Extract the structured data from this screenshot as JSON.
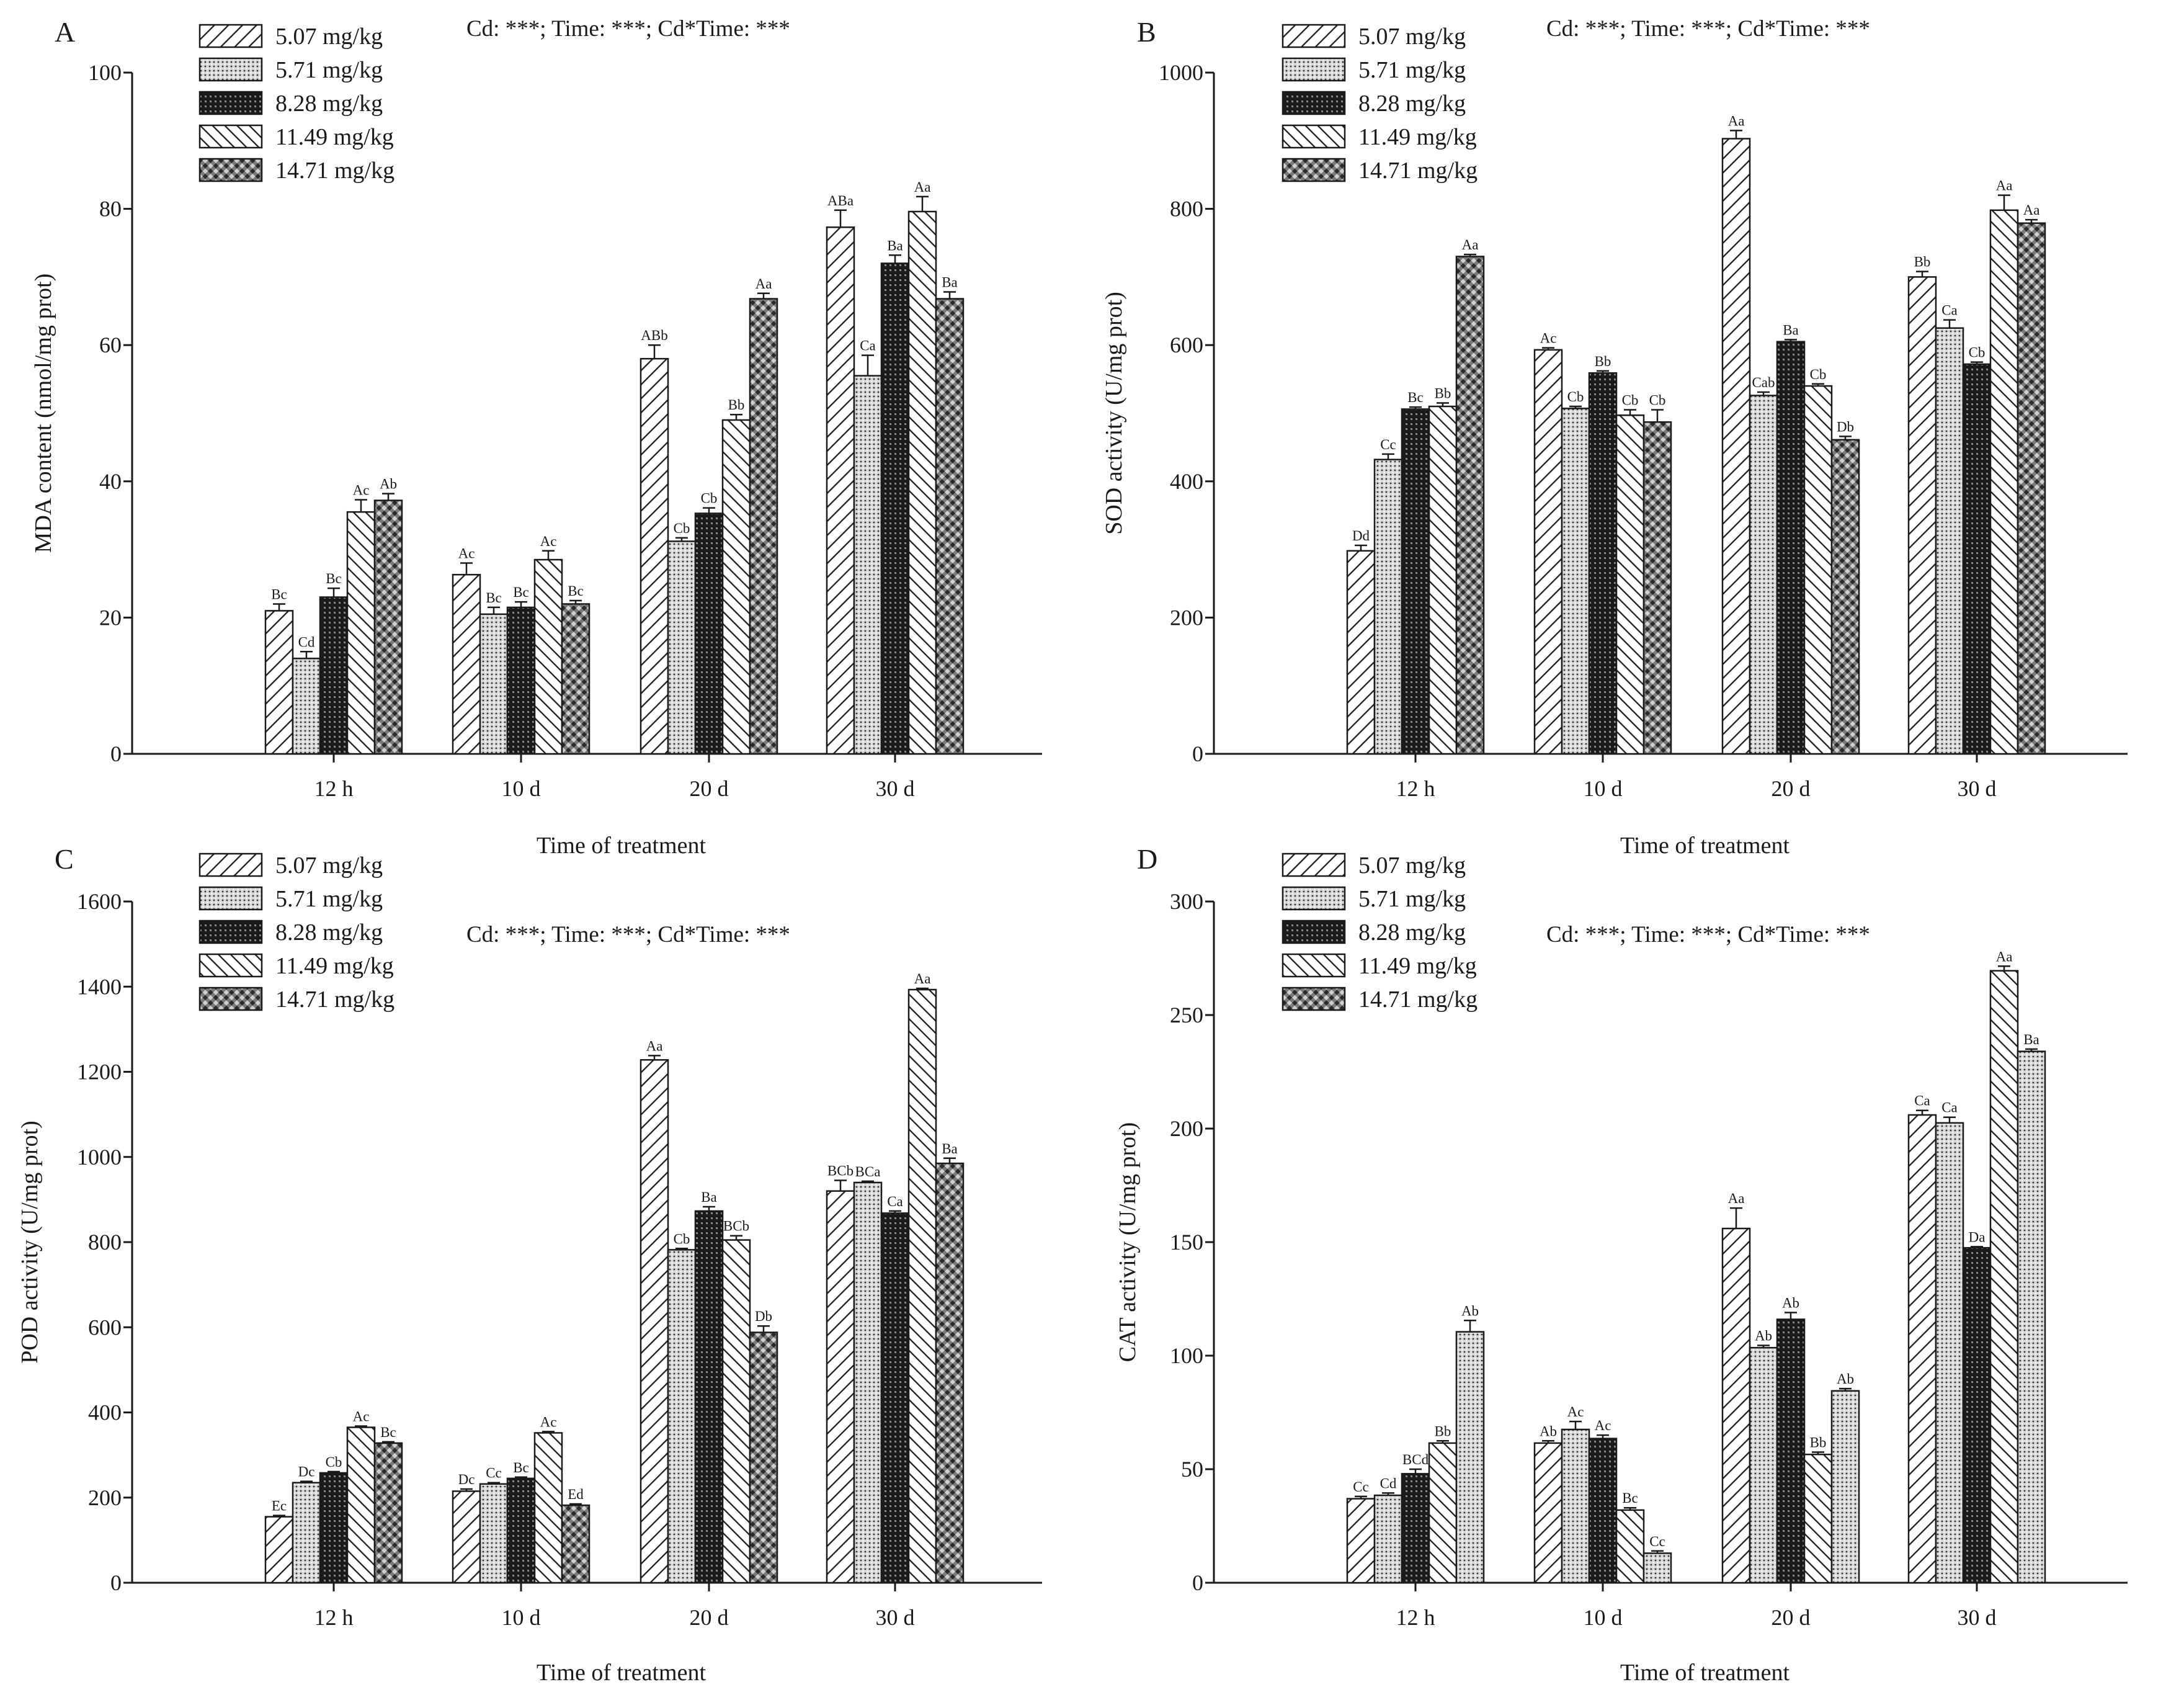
{
  "chart_data": [
    {
      "type": "bar",
      "panel": "A",
      "stat_text": "Cd: ***; Time: ***; Cd*Time: ***",
      "xlabel": "Time of treatment",
      "ylabel": "MDA content (nmol/mg prot)",
      "ylim": [
        0,
        100
      ],
      "yticks": [
        0,
        20,
        40,
        60,
        80,
        100
      ],
      "legend": "top-left",
      "categories": [
        "12 h",
        "10 d",
        "20 d",
        "30 d"
      ],
      "series": [
        {
          "name": "5.07 mg/kg",
          "pattern": "p0",
          "values": [
            21,
            26.3,
            58,
            77.3
          ],
          "errors": [
            1,
            1.7,
            2,
            2.5
          ],
          "labels": [
            "Bc",
            "Ac",
            "ABb",
            "ABa"
          ]
        },
        {
          "name": "5.71 mg/kg",
          "pattern": "p1",
          "values": [
            14,
            20.5,
            31.2,
            55.5
          ],
          "errors": [
            1,
            1,
            0.5,
            3
          ],
          "labels": [
            "Cd",
            "Bc",
            "Cb",
            "Ca"
          ]
        },
        {
          "name": "8.28 mg/kg",
          "pattern": "p2",
          "values": [
            23,
            21.5,
            35.3,
            72
          ],
          "errors": [
            1.3,
            0.8,
            0.8,
            1.2
          ],
          "labels": [
            "Bc",
            "Bc",
            "Cb",
            "Ba"
          ]
        },
        {
          "name": "11.49 mg/kg",
          "pattern": "p3",
          "values": [
            35.5,
            28.5,
            49,
            79.6
          ],
          "errors": [
            1.8,
            1.3,
            0.8,
            2.2
          ],
          "labels": [
            "Ac",
            "Ac",
            "Bb",
            "Aa"
          ]
        },
        {
          "name": "14.71 mg/kg",
          "pattern": "p4",
          "values": [
            37.2,
            22,
            66.8,
            66.8
          ],
          "errors": [
            1,
            0.5,
            0.8,
            1
          ],
          "labels": [
            "Ab",
            "Bc",
            "Aa",
            "Ba"
          ]
        }
      ]
    },
    {
      "type": "bar",
      "panel": "B",
      "stat_text": "Cd: ***; Time: ***; Cd*Time: ***",
      "xlabel": "Time of treatment",
      "ylabel": "SOD activity (U/mg prot)",
      "ylim": [
        0,
        1000
      ],
      "yticks": [
        0,
        200,
        400,
        600,
        800,
        1000
      ],
      "legend": "top-left",
      "categories": [
        "12 h",
        "10 d",
        "20 d",
        "30 d"
      ],
      "series": [
        {
          "name": "5.07 mg/kg",
          "pattern": "p0",
          "values": [
            298,
            593,
            903,
            700
          ],
          "errors": [
            8,
            3,
            12,
            8
          ],
          "labels": [
            "Dd",
            "Ac",
            "Aa",
            "Bb"
          ]
        },
        {
          "name": "5.71 mg/kg",
          "pattern": "p1",
          "values": [
            432,
            507,
            526,
            625
          ],
          "errors": [
            8,
            3,
            5,
            12
          ],
          "labels": [
            "Cc",
            "Cb",
            "Cab",
            "Ca"
          ]
        },
        {
          "name": "8.28 mg/kg",
          "pattern": "p2",
          "values": [
            506,
            559,
            605,
            572
          ],
          "errors": [
            3,
            3,
            3,
            3
          ],
          "labels": [
            "Bc",
            "Bb",
            "Ba",
            "Cb"
          ]
        },
        {
          "name": "11.49 mg/kg",
          "pattern": "p3",
          "values": [
            510,
            497,
            540,
            798
          ],
          "errors": [
            5,
            8,
            3,
            22
          ],
          "labels": [
            "Bb",
            "Cb",
            "Cb",
            "Aa"
          ]
        },
        {
          "name": "14.71 mg/kg",
          "pattern": "p4",
          "values": [
            730,
            487,
            461,
            779
          ],
          "errors": [
            3,
            18,
            5,
            5
          ],
          "labels": [
            "Aa",
            "Cb",
            "Db",
            "Aa"
          ]
        }
      ]
    },
    {
      "type": "bar",
      "panel": "C",
      "stat_text": "Cd: ***; Time: ***; Cd*Time: ***",
      "xlabel": "Time of treatment",
      "ylabel": "POD activity (U/mg prot)",
      "ylim": [
        0,
        1600
      ],
      "yticks": [
        0,
        200,
        400,
        600,
        800,
        1000,
        1200,
        1400,
        1600
      ],
      "legend": "top-left",
      "categories": [
        "12 h",
        "10 d",
        "20 d",
        "30 d"
      ],
      "series": [
        {
          "name": "5.07 mg/kg",
          "pattern": "p0",
          "values": [
            155,
            215,
            1228,
            920
          ],
          "errors": [
            3,
            5,
            10,
            25
          ],
          "labels": [
            "Ec",
            "Dc",
            "Aa",
            "BCb"
          ]
        },
        {
          "name": "5.71 mg/kg",
          "pattern": "p1",
          "values": [
            235,
            232,
            782,
            940
          ],
          "errors": [
            3,
            3,
            3,
            3
          ],
          "labels": [
            "Dc",
            "Cc",
            "Cb",
            "BCa"
          ]
        },
        {
          "name": "8.28 mg/kg",
          "pattern": "p2",
          "values": [
            258,
            245,
            873,
            868
          ],
          "errors": [
            3,
            3,
            10,
            5
          ],
          "labels": [
            "Cb",
            "Bc",
            "Ba",
            "Ca"
          ]
        },
        {
          "name": "11.49 mg/kg",
          "pattern": "p3",
          "values": [
            365,
            352,
            805,
            1393
          ],
          "errors": [
            3,
            3,
            10,
            3
          ],
          "labels": [
            "Ac",
            "Ac",
            "BCb",
            "Aa"
          ]
        },
        {
          "name": "14.71 mg/kg",
          "pattern": "p4",
          "values": [
            328,
            182,
            588,
            985
          ],
          "errors": [
            3,
            3,
            15,
            12
          ],
          "labels": [
            "Bc",
            "Ed",
            "Db",
            "Ba"
          ]
        }
      ]
    },
    {
      "type": "bar",
      "panel": "D",
      "stat_text": "Cd: ***; Time: ***; Cd*Time: ***",
      "xlabel": "Time of treatment",
      "ylabel": "CAT activity (U/mg prot)",
      "ylim": [
        0,
        300
      ],
      "yticks": [
        0,
        50,
        100,
        150,
        200,
        250,
        300
      ],
      "legend": "top-left",
      "categories": [
        "12 h",
        "10 d",
        "20 d",
        "30 d"
      ],
      "series": [
        {
          "name": "5.07 mg/kg",
          "pattern": "p0",
          "values": [
            37,
            61.5,
            156,
            206
          ],
          "errors": [
            1,
            1,
            9,
            2
          ],
          "labels": [
            "Cc",
            "Ab",
            "Aa",
            "Ca"
          ]
        },
        {
          "name": "5.71 mg/kg",
          "pattern": "p1",
          "values": [
            38.5,
            67.5,
            103.5,
            202.5
          ],
          "errors": [
            1,
            3.5,
            1,
            2.5
          ],
          "labels": [
            "Cd",
            "Ac",
            "Ab",
            "Ca"
          ]
        },
        {
          "name": "8.28 mg/kg",
          "pattern": "p2",
          "values": [
            48,
            63.5,
            116,
            147.5
          ],
          "errors": [
            2,
            1.5,
            3,
            0.5
          ],
          "labels": [
            "BCd",
            "Ac",
            "Ab",
            "Da"
          ]
        },
        {
          "name": "11.49 mg/kg",
          "pattern": "p3",
          "values": [
            61.5,
            32,
            56.5,
            269.5
          ],
          "errors": [
            1,
            1,
            1,
            2
          ],
          "labels": [
            "Bb",
            "Bc",
            "Bb",
            "Aa"
          ]
        },
        {
          "name": "14.71 mg/kg",
          "pattern": "p1",
          "values": [
            110.5,
            13,
            84.5,
            234
          ],
          "errors": [
            5,
            1,
            1,
            1
          ],
          "labels": [
            "Ab",
            "Cc",
            "Ab",
            "Ba"
          ]
        }
      ]
    }
  ]
}
